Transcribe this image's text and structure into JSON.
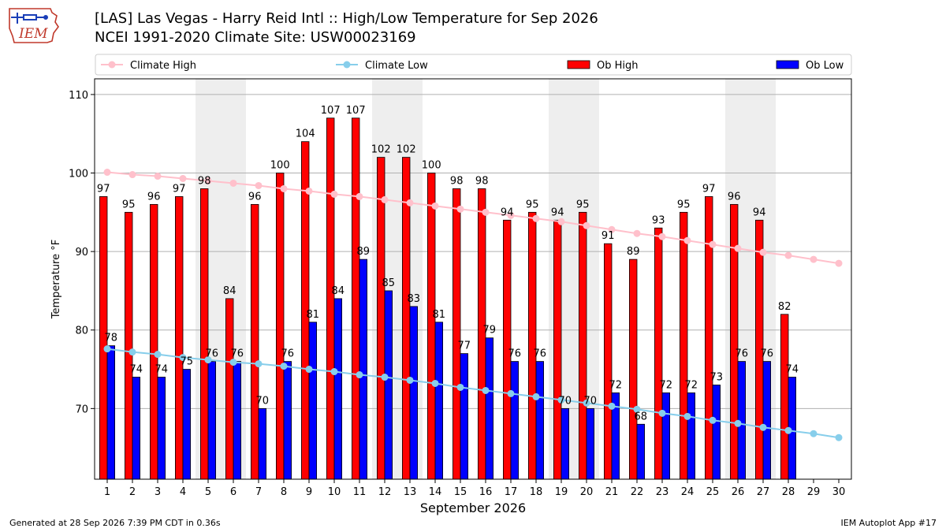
{
  "header": {
    "title": "[LAS] Las Vegas - Harry Reid Intl :: High/Low Temperature for Sep 2026",
    "subtitle": "NCEI 1991-2020 Climate Site: USW00023169",
    "logo_text": "IEM"
  },
  "footer": {
    "left": "Generated at 28 Sep 2026 7:39 PM CDT in 0.36s",
    "right": "IEM Autoplot App #17"
  },
  "colors": {
    "ob_high": "#ff0000",
    "ob_low": "#0000ff",
    "climate_high": "#ffc0cb",
    "climate_low": "#87ceeb",
    "weekend_shade": "#eeeeee",
    "grid": "#b0b0b0"
  },
  "chart_data": {
    "type": "bar",
    "xlabel": "September 2026",
    "ylabel": "Temperature °F",
    "ylim": [
      61,
      112
    ],
    "yticks": [
      70,
      80,
      90,
      100,
      110
    ],
    "grid": "horizontal",
    "legend_placement": "top",
    "categories": [
      1,
      2,
      3,
      4,
      5,
      6,
      7,
      8,
      9,
      10,
      11,
      12,
      13,
      14,
      15,
      16,
      17,
      18,
      19,
      20,
      21,
      22,
      23,
      24,
      25,
      26,
      27,
      28,
      29,
      30
    ],
    "shaded_days": [
      5,
      6,
      12,
      13,
      19,
      20,
      26,
      27
    ],
    "series": [
      {
        "name": "Ob High",
        "kind": "bar",
        "values": [
          97,
          95,
          96,
          97,
          98,
          84,
          96,
          100,
          104,
          107,
          107,
          102,
          102,
          100,
          98,
          98,
          94,
          95,
          94,
          95,
          91,
          89,
          93,
          95,
          97,
          96,
          94,
          82,
          null,
          null
        ]
      },
      {
        "name": "Ob Low",
        "kind": "bar",
        "values": [
          78,
          74,
          74,
          75,
          76,
          76,
          70,
          76,
          81,
          84,
          89,
          85,
          83,
          81,
          77,
          79,
          76,
          76,
          70,
          70,
          72,
          68,
          72,
          72,
          73,
          76,
          76,
          74,
          null,
          null
        ]
      },
      {
        "name": "Climate High",
        "kind": "line",
        "values": [
          100.1,
          99.8,
          99.6,
          99.3,
          99.0,
          98.7,
          98.4,
          98.0,
          97.7,
          97.3,
          97.0,
          96.6,
          96.2,
          95.8,
          95.4,
          95.0,
          94.6,
          94.2,
          93.8,
          93.3,
          92.8,
          92.3,
          91.9,
          91.4,
          90.9,
          90.4,
          89.9,
          89.5,
          89.0,
          88.5
        ]
      },
      {
        "name": "Climate Low",
        "kind": "line",
        "values": [
          77.6,
          77.2,
          76.9,
          76.5,
          76.2,
          75.9,
          75.7,
          75.4,
          75.0,
          74.7,
          74.3,
          74.0,
          73.6,
          73.2,
          72.7,
          72.3,
          71.9,
          71.5,
          71.1,
          70.7,
          70.3,
          69.9,
          69.4,
          69.0,
          68.5,
          68.1,
          67.6,
          67.2,
          66.8,
          66.3
        ]
      }
    ]
  }
}
